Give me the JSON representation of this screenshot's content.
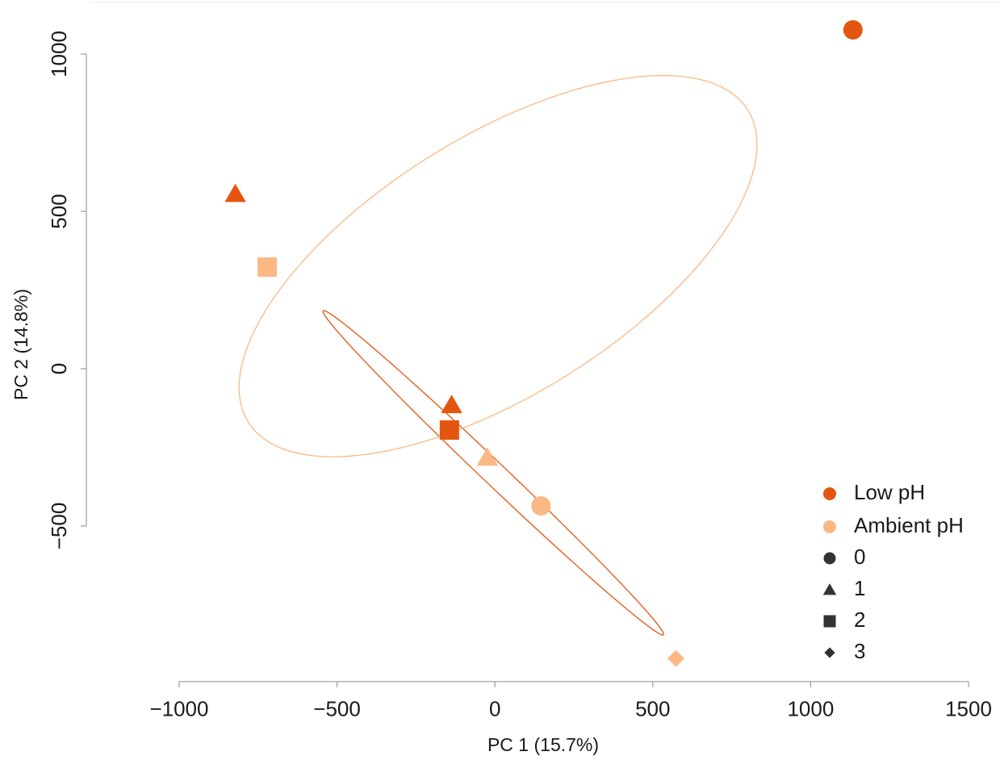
{
  "chart_data": {
    "type": "scatter",
    "xlabel": "PC 1 (15.7%)",
    "ylabel": "PC 2 (14.8%)",
    "xlim": [
      -1290,
      1580
    ],
    "ylim": [
      -956,
      1159
    ],
    "xticks": [
      {
        "value": -1000,
        "label": "−1000"
      },
      {
        "value": -500,
        "label": "−500"
      },
      0,
      500,
      1000,
      1500
    ],
    "yticks": [
      {
        "value": -500,
        "label": "−500"
      },
      0,
      500,
      1000
    ],
    "grid": false,
    "legend": "bottom-right",
    "series": [
      {
        "name": "Low pH",
        "color": "#e4560f",
        "x": [
          1134,
          -822,
          -137,
          -144
        ],
        "y": [
          1077,
          556,
          -115,
          -195
        ],
        "time": [
          "0",
          "1",
          "1",
          "2"
        ],
        "ellipse": {
          "center": [
            -5,
            -331
          ],
          "major": [
            539,
            -515
          ],
          "minor": [
            25,
            26
          ]
        }
      },
      {
        "name": "Ambient pH",
        "color": "#fcb884",
        "x": [
          -721,
          -24,
          146,
          573
        ],
        "y": [
          323,
          -282,
          -436,
          -921
        ],
        "time": [
          "2",
          "1",
          "0",
          "3"
        ],
        "ellipse": {
          "center": [
            10,
            326
          ],
          "major": [
            791,
            496
          ],
          "minor": [
            217,
            -348
          ]
        }
      }
    ],
    "shape_legend": {
      "labels": [
        "0",
        "1",
        "2",
        "3"
      ],
      "markers": [
        "circle",
        "triangle",
        "square",
        "diamond"
      ],
      "color": "#333333"
    }
  }
}
